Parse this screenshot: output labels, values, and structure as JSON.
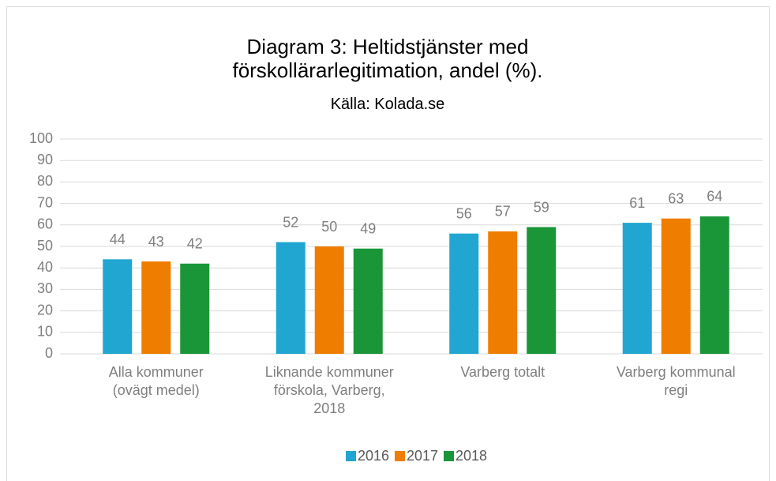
{
  "chart_data": {
    "type": "bar",
    "title": "Diagram 3: Heltidstjänster med förskollärarlegitimation, andel (%).",
    "subtitle": "Källa: Kolada.se",
    "categories": [
      "Alla kommuner (ovägt medel)",
      "Liknande kommuner förskola, Varberg, 2018",
      "Varberg totalt",
      "Varberg kommunal regi"
    ],
    "series": [
      {
        "name": "2016",
        "color": "#21a6d1",
        "values": [
          44,
          52,
          56,
          61
        ]
      },
      {
        "name": "2017",
        "color": "#ef7d00",
        "values": [
          43,
          50,
          57,
          63
        ]
      },
      {
        "name": "2018",
        "color": "#1a9639",
        "values": [
          42,
          49,
          59,
          64
        ]
      }
    ],
    "ylim": [
      0,
      100
    ],
    "yticks": [
      0,
      10,
      20,
      30,
      40,
      50,
      60,
      70,
      80,
      90,
      100
    ],
    "grid": true,
    "legend": "bottom"
  }
}
